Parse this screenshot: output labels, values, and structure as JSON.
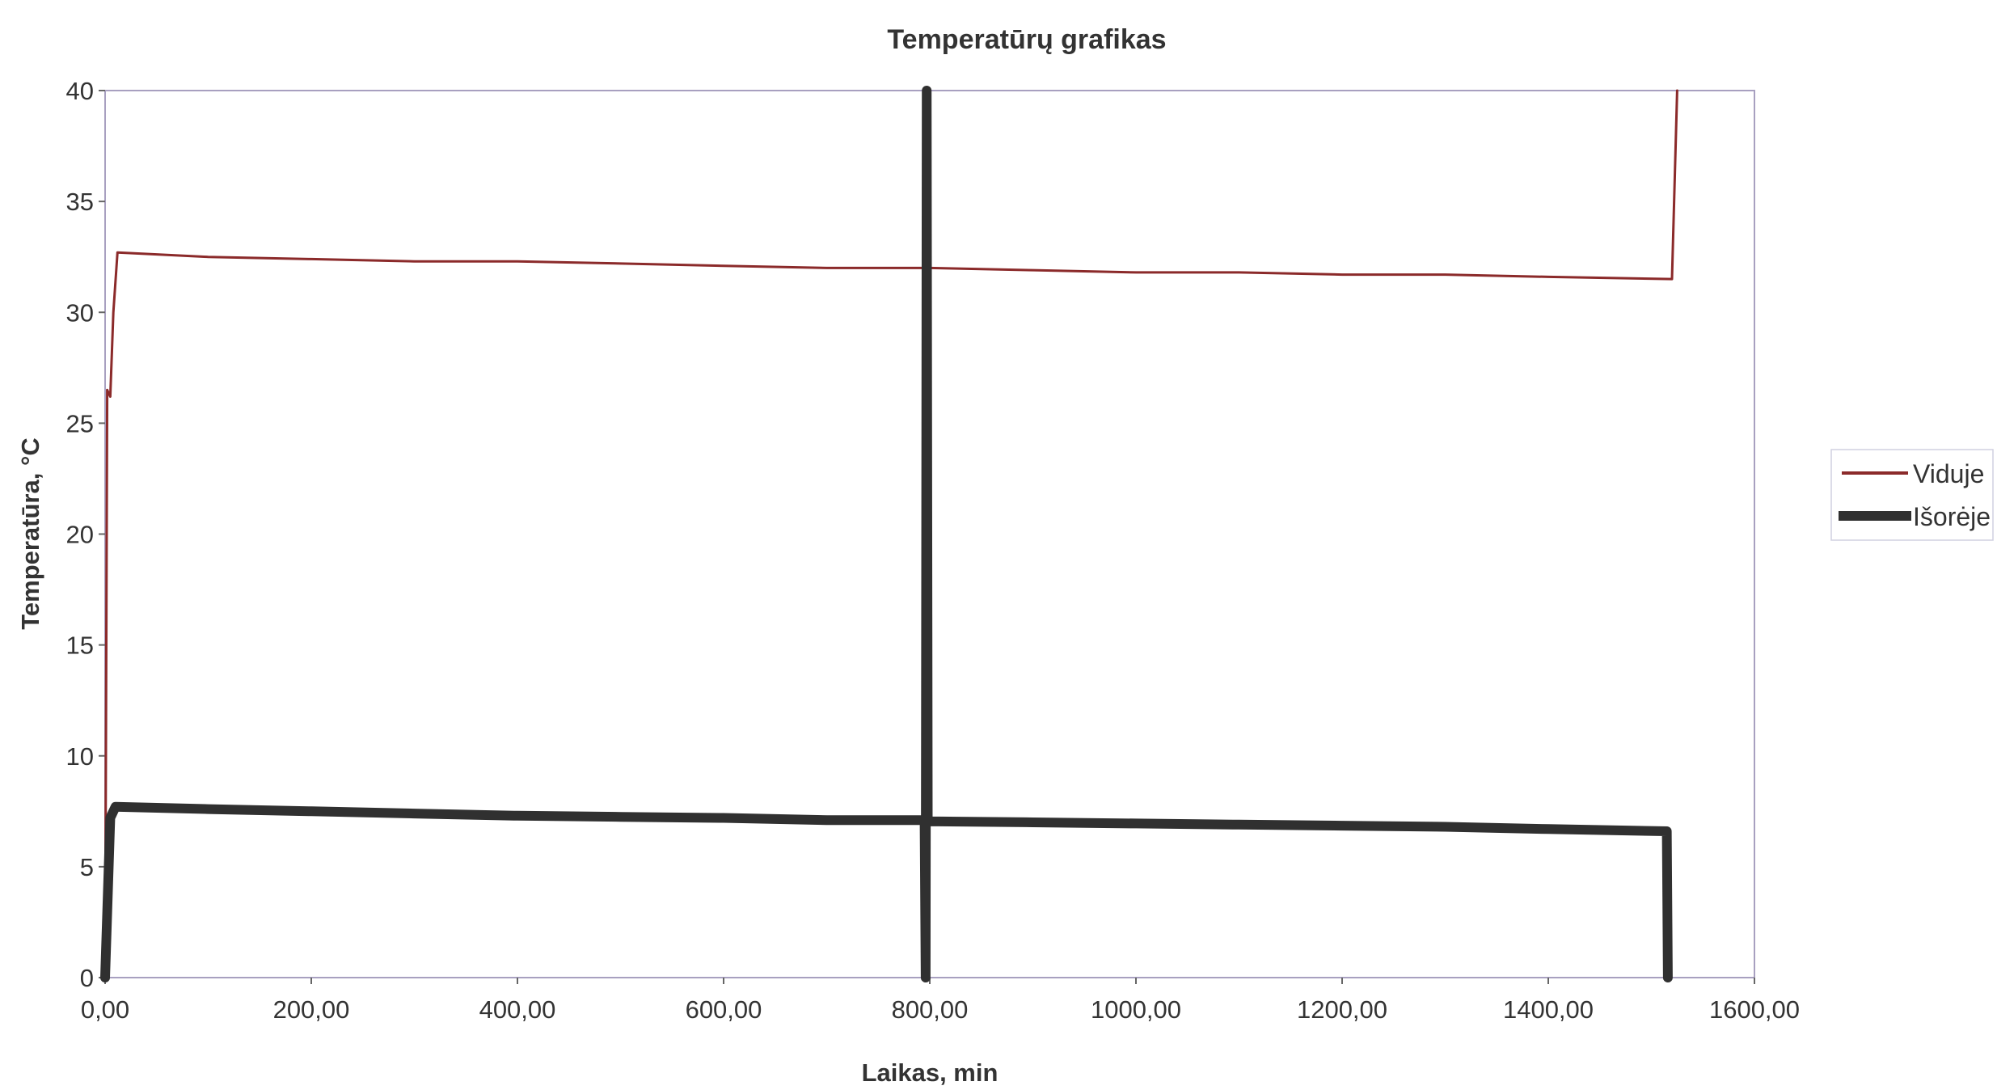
{
  "chart_data": {
    "type": "line",
    "title": "Temperatūrų grafikas",
    "xlabel": "Laikas, min",
    "ylabel": "Temperatūra, °C",
    "xlim": [
      0,
      1600
    ],
    "ylim": [
      0,
      40
    ],
    "x_ticks": [
      0,
      200,
      400,
      600,
      800,
      1000,
      1200,
      1400,
      1600
    ],
    "x_tick_labels": [
      "0,00",
      "200,00",
      "400,00",
      "600,00",
      "800,00",
      "1000,00",
      "1200,00",
      "1400,00",
      "1600,00"
    ],
    "y_ticks": [
      0,
      5,
      10,
      15,
      20,
      25,
      30,
      35,
      40
    ],
    "y_tick_labels": [
      "0",
      "5",
      "10",
      "15",
      "20",
      "25",
      "30",
      "35",
      "40"
    ],
    "grid": false,
    "legend_position": "right",
    "series": [
      {
        "name": "Viduje",
        "color": "#8b2a2a",
        "line_style": "thin",
        "points": [
          [
            0,
            0
          ],
          [
            2,
            26.5
          ],
          [
            5,
            26.2
          ],
          [
            8,
            30
          ],
          [
            12,
            32.7
          ],
          [
            100,
            32.5
          ],
          [
            200,
            32.4
          ],
          [
            300,
            32.3
          ],
          [
            400,
            32.3
          ],
          [
            500,
            32.2
          ],
          [
            600,
            32.1
          ],
          [
            700,
            32.0
          ],
          [
            800,
            32.0
          ],
          [
            900,
            31.9
          ],
          [
            1000,
            31.8
          ],
          [
            1100,
            31.8
          ],
          [
            1200,
            31.7
          ],
          [
            1300,
            31.7
          ],
          [
            1400,
            31.6
          ],
          [
            1520,
            31.5
          ],
          [
            1525,
            40
          ]
        ]
      },
      {
        "name": "Išorėje",
        "color": "#303030",
        "line_style": "thick",
        "points": [
          [
            0,
            0
          ],
          [
            5,
            7.2
          ],
          [
            10,
            7.7
          ],
          [
            100,
            7.6
          ],
          [
            200,
            7.5
          ],
          [
            300,
            7.4
          ],
          [
            400,
            7.3
          ],
          [
            500,
            7.25
          ],
          [
            600,
            7.2
          ],
          [
            700,
            7.1
          ],
          [
            795,
            7.1
          ],
          [
            796,
            0
          ],
          [
            797,
            40
          ],
          [
            798,
            7.05
          ],
          [
            900,
            7.0
          ],
          [
            1000,
            6.95
          ],
          [
            1100,
            6.9
          ],
          [
            1200,
            6.85
          ],
          [
            1300,
            6.8
          ],
          [
            1400,
            6.7
          ],
          [
            1515,
            6.6
          ],
          [
            1516,
            0
          ]
        ]
      }
    ]
  }
}
